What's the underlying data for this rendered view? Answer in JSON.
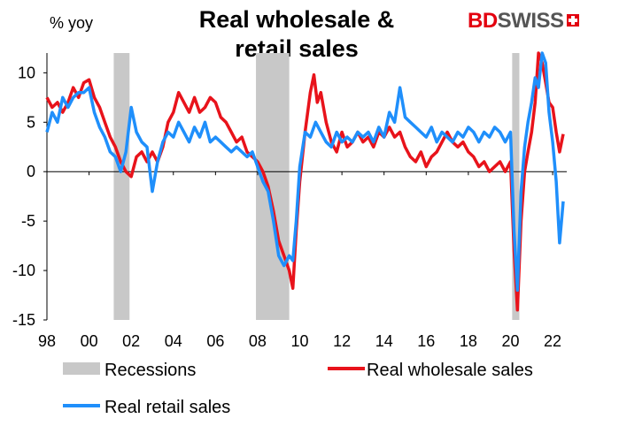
{
  "header": {
    "title_line1": "Real wholesale &",
    "title_line2": "retail sales",
    "unit": "% yoy"
  },
  "brand": {
    "name_part1": "BD",
    "name_part2": "SWISS",
    "red": "#e3000f",
    "grey": "#555555"
  },
  "chart_data": {
    "type": "line",
    "title": "Real wholesale & retail sales",
    "ylabel": "% yoy",
    "xlim": [
      1998,
      2022.67
    ],
    "ylim": [
      -15,
      12
    ],
    "yticks": [
      -15,
      -10,
      -5,
      0,
      5,
      10
    ],
    "xticks": [
      1998,
      2000,
      2002,
      2004,
      2006,
      2008,
      2010,
      2012,
      2014,
      2016,
      2018,
      2020,
      2022
    ],
    "xtick_labels": [
      "98",
      "00",
      "02",
      "04",
      "06",
      "08",
      "10",
      "12",
      "14",
      "16",
      "18",
      "20",
      "22"
    ],
    "grid": false,
    "legend_position": "bottom",
    "recessions": {
      "name": "Recessions",
      "color": "#c8c8c8",
      "periods": [
        [
          2001.17,
          2001.92
        ],
        [
          2007.92,
          2009.5
        ],
        [
          2020.08,
          2020.42
        ]
      ]
    },
    "series": [
      {
        "name": "Real wholesale sales",
        "color": "#e8131b",
        "points": [
          [
            1998.0,
            7.5
          ],
          [
            1998.25,
            6.5
          ],
          [
            1998.5,
            7.0
          ],
          [
            1998.75,
            6.0
          ],
          [
            1999.0,
            7.0
          ],
          [
            1999.25,
            8.5
          ],
          [
            1999.5,
            7.5
          ],
          [
            1999.75,
            9.0
          ],
          [
            2000.0,
            9.3
          ],
          [
            2000.25,
            7.5
          ],
          [
            2000.5,
            6.5
          ],
          [
            2000.75,
            5.0
          ],
          [
            2001.0,
            3.5
          ],
          [
            2001.25,
            2.5
          ],
          [
            2001.5,
            1.0
          ],
          [
            2001.75,
            0.0
          ],
          [
            2002.0,
            -0.5
          ],
          [
            2002.25,
            1.5
          ],
          [
            2002.5,
            2.0
          ],
          [
            2002.75,
            1.0
          ],
          [
            2003.0,
            2.0
          ],
          [
            2003.25,
            1.0
          ],
          [
            2003.5,
            2.5
          ],
          [
            2003.75,
            5.0
          ],
          [
            2004.0,
            6.0
          ],
          [
            2004.25,
            8.0
          ],
          [
            2004.5,
            7.0
          ],
          [
            2004.75,
            6.0
          ],
          [
            2005.0,
            7.5
          ],
          [
            2005.25,
            6.0
          ],
          [
            2005.5,
            6.5
          ],
          [
            2005.75,
            7.5
          ],
          [
            2006.0,
            7.0
          ],
          [
            2006.25,
            5.5
          ],
          [
            2006.5,
            5.0
          ],
          [
            2006.75,
            4.0
          ],
          [
            2007.0,
            3.0
          ],
          [
            2007.25,
            3.5
          ],
          [
            2007.5,
            2.0
          ],
          [
            2007.75,
            1.5
          ],
          [
            2008.0,
            1.0
          ],
          [
            2008.25,
            0.0
          ],
          [
            2008.5,
            -1.5
          ],
          [
            2008.75,
            -4.0
          ],
          [
            2009.0,
            -7.0
          ],
          [
            2009.25,
            -8.5
          ],
          [
            2009.5,
            -10.0
          ],
          [
            2009.67,
            -11.8
          ],
          [
            2009.83,
            -6.0
          ],
          [
            2010.0,
            -1.0
          ],
          [
            2010.25,
            4.0
          ],
          [
            2010.5,
            8.0
          ],
          [
            2010.67,
            9.8
          ],
          [
            2010.83,
            7.0
          ],
          [
            2011.0,
            8.0
          ],
          [
            2011.25,
            5.0
          ],
          [
            2011.5,
            3.0
          ],
          [
            2011.75,
            2.0
          ],
          [
            2012.0,
            4.0
          ],
          [
            2012.25,
            2.5
          ],
          [
            2012.5,
            3.0
          ],
          [
            2012.75,
            4.0
          ],
          [
            2013.0,
            3.0
          ],
          [
            2013.25,
            3.5
          ],
          [
            2013.5,
            2.5
          ],
          [
            2013.75,
            4.0
          ],
          [
            2014.0,
            3.5
          ],
          [
            2014.25,
            4.5
          ],
          [
            2014.5,
            3.5
          ],
          [
            2014.75,
            4.0
          ],
          [
            2015.0,
            2.5
          ],
          [
            2015.25,
            1.5
          ],
          [
            2015.5,
            1.0
          ],
          [
            2015.75,
            2.0
          ],
          [
            2016.0,
            0.5
          ],
          [
            2016.25,
            1.5
          ],
          [
            2016.5,
            2.0
          ],
          [
            2016.75,
            3.0
          ],
          [
            2017.0,
            4.0
          ],
          [
            2017.25,
            3.0
          ],
          [
            2017.5,
            2.5
          ],
          [
            2017.75,
            3.0
          ],
          [
            2018.0,
            2.0
          ],
          [
            2018.25,
            1.5
          ],
          [
            2018.5,
            0.5
          ],
          [
            2018.75,
            1.0
          ],
          [
            2019.0,
            0.0
          ],
          [
            2019.25,
            0.5
          ],
          [
            2019.5,
            1.0
          ],
          [
            2019.75,
            0.0
          ],
          [
            2020.0,
            1.0
          ],
          [
            2020.17,
            -8.0
          ],
          [
            2020.33,
            -14.0
          ],
          [
            2020.5,
            -5.0
          ],
          [
            2020.67,
            0.0
          ],
          [
            2020.83,
            2.0
          ],
          [
            2021.0,
            4.0
          ],
          [
            2021.17,
            7.0
          ],
          [
            2021.33,
            12.0
          ],
          [
            2021.5,
            11.0
          ],
          [
            2021.67,
            9.0
          ],
          [
            2021.83,
            7.0
          ],
          [
            2022.0,
            6.5
          ],
          [
            2022.17,
            4.0
          ],
          [
            2022.33,
            2.0
          ],
          [
            2022.5,
            3.8
          ]
        ]
      },
      {
        "name": "Real retail sales",
        "color": "#1f8ffb",
        "points": [
          [
            1998.0,
            4.0
          ],
          [
            1998.25,
            6.0
          ],
          [
            1998.5,
            5.0
          ],
          [
            1998.75,
            7.5
          ],
          [
            1999.0,
            6.5
          ],
          [
            1999.25,
            7.5
          ],
          [
            1999.5,
            8.0
          ],
          [
            1999.75,
            8.0
          ],
          [
            2000.0,
            8.5
          ],
          [
            2000.25,
            6.0
          ],
          [
            2000.5,
            4.5
          ],
          [
            2000.75,
            3.5
          ],
          [
            2001.0,
            2.0
          ],
          [
            2001.25,
            1.5
          ],
          [
            2001.5,
            0.0
          ],
          [
            2001.75,
            2.0
          ],
          [
            2002.0,
            6.5
          ],
          [
            2002.25,
            4.0
          ],
          [
            2002.5,
            3.0
          ],
          [
            2002.75,
            2.5
          ],
          [
            2003.0,
            -2.0
          ],
          [
            2003.25,
            1.0
          ],
          [
            2003.5,
            3.0
          ],
          [
            2003.75,
            4.0
          ],
          [
            2004.0,
            3.5
          ],
          [
            2004.25,
            5.0
          ],
          [
            2004.5,
            4.0
          ],
          [
            2004.75,
            3.0
          ],
          [
            2005.0,
            4.5
          ],
          [
            2005.25,
            3.5
          ],
          [
            2005.5,
            5.0
          ],
          [
            2005.75,
            3.0
          ],
          [
            2006.0,
            3.5
          ],
          [
            2006.25,
            3.0
          ],
          [
            2006.5,
            2.5
          ],
          [
            2006.75,
            2.0
          ],
          [
            2007.0,
            2.5
          ],
          [
            2007.25,
            2.0
          ],
          [
            2007.5,
            1.5
          ],
          [
            2007.75,
            2.0
          ],
          [
            2008.0,
            0.5
          ],
          [
            2008.25,
            -1.0
          ],
          [
            2008.5,
            -2.0
          ],
          [
            2008.75,
            -5.0
          ],
          [
            2009.0,
            -8.5
          ],
          [
            2009.25,
            -9.5
          ],
          [
            2009.5,
            -8.5
          ],
          [
            2009.67,
            -9.0
          ],
          [
            2009.83,
            -5.0
          ],
          [
            2010.0,
            0.5
          ],
          [
            2010.25,
            4.0
          ],
          [
            2010.5,
            3.5
          ],
          [
            2010.75,
            5.0
          ],
          [
            2011.0,
            4.0
          ],
          [
            2011.25,
            3.0
          ],
          [
            2011.5,
            2.5
          ],
          [
            2011.75,
            4.0
          ],
          [
            2012.0,
            3.0
          ],
          [
            2012.25,
            3.5
          ],
          [
            2012.5,
            3.0
          ],
          [
            2012.75,
            4.0
          ],
          [
            2013.0,
            3.5
          ],
          [
            2013.25,
            4.0
          ],
          [
            2013.5,
            3.0
          ],
          [
            2013.75,
            4.5
          ],
          [
            2014.0,
            3.5
          ],
          [
            2014.25,
            6.0
          ],
          [
            2014.5,
            5.0
          ],
          [
            2014.75,
            8.5
          ],
          [
            2015.0,
            5.5
          ],
          [
            2015.25,
            5.0
          ],
          [
            2015.5,
            4.5
          ],
          [
            2015.75,
            4.0
          ],
          [
            2016.0,
            3.5
          ],
          [
            2016.25,
            4.5
          ],
          [
            2016.5,
            3.0
          ],
          [
            2016.75,
            4.0
          ],
          [
            2017.0,
            3.5
          ],
          [
            2017.25,
            3.0
          ],
          [
            2017.5,
            4.0
          ],
          [
            2017.75,
            3.5
          ],
          [
            2018.0,
            4.5
          ],
          [
            2018.25,
            4.0
          ],
          [
            2018.5,
            3.0
          ],
          [
            2018.75,
            4.0
          ],
          [
            2019.0,
            3.5
          ],
          [
            2019.25,
            4.5
          ],
          [
            2019.5,
            4.0
          ],
          [
            2019.75,
            3.0
          ],
          [
            2020.0,
            4.0
          ],
          [
            2020.17,
            -6.0
          ],
          [
            2020.33,
            -12.0
          ],
          [
            2020.5,
            -2.0
          ],
          [
            2020.67,
            2.5
          ],
          [
            2020.83,
            5.0
          ],
          [
            2021.0,
            7.0
          ],
          [
            2021.17,
            9.5
          ],
          [
            2021.33,
            8.5
          ],
          [
            2021.5,
            12.0
          ],
          [
            2021.67,
            11.0
          ],
          [
            2021.83,
            6.0
          ],
          [
            2022.0,
            3.0
          ],
          [
            2022.17,
            -1.0
          ],
          [
            2022.33,
            -7.2
          ],
          [
            2022.42,
            -5.0
          ],
          [
            2022.5,
            -3.0
          ]
        ]
      }
    ]
  }
}
